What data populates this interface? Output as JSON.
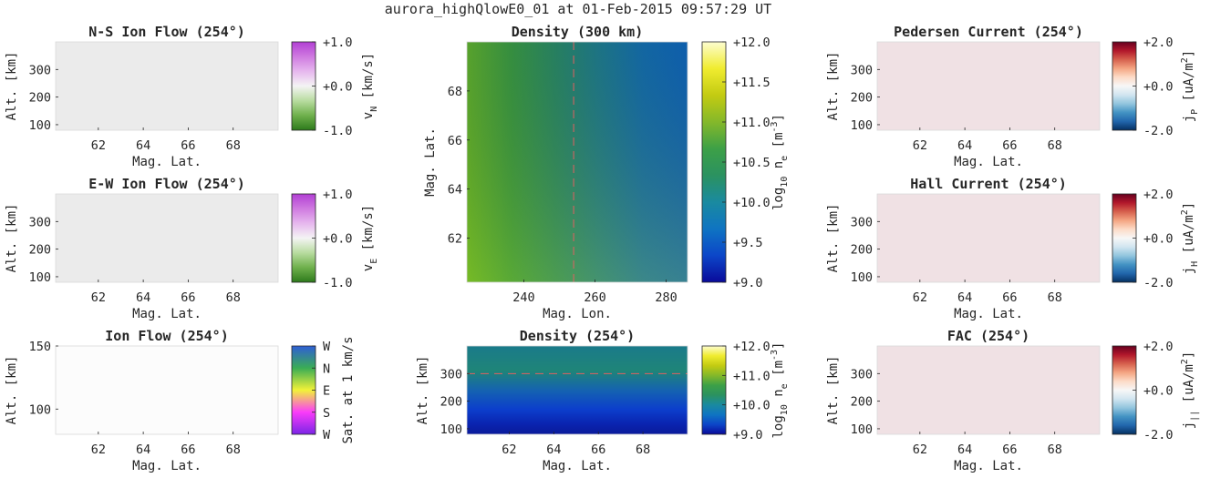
{
  "figure": {
    "title": "aurora_highQlowE0_01 at 01-Feb-2015 09:57:29 UT"
  },
  "colors": {
    "axis": "#262626",
    "flat_gray": "#ebebeb",
    "flat_pink": "#f0e1e4",
    "flat_white": "#fcfcfc",
    "cursor": "#e06060",
    "diverging_cmap": [
      "#053061",
      "#2166ac",
      "#4393c3",
      "#92c5de",
      "#d1e5f0",
      "#f7f7f7",
      "#fddbc7",
      "#f4a582",
      "#d6604d",
      "#b2182b",
      "#67001f"
    ],
    "green_purple_cmap": [
      "#2d7a1b",
      "#6fb04c",
      "#b8dca0",
      "#f4f4f4",
      "#e6b7ee",
      "#cf7ae0",
      "#b23fd4"
    ],
    "density_cmap": [
      "#0a0a9a",
      "#0c46c8",
      "#0f74c2",
      "#1a8aa0",
      "#2b9260",
      "#3da047",
      "#84b82a",
      "#c3cb12",
      "#f0ec2f",
      "#fdfdd0"
    ],
    "direction_cmap": [
      "#7b25e6",
      "#fa3cfa",
      "#f2f238",
      "#3aad55",
      "#2f5ed6"
    ]
  },
  "chart_data": [
    {
      "type": "heatmap",
      "title": "N-S Ion Flow (254°)",
      "xlabel": "Mag. Lat.",
      "ylabel": "Alt. [km]",
      "xlim": [
        60.1,
        70.0
      ],
      "ylim": [
        80,
        400
      ],
      "xticks": [
        62,
        64,
        66,
        68
      ],
      "yticks": [
        100,
        200,
        300
      ],
      "ytick_labels": [
        "100",
        "200",
        "300"
      ],
      "field": "uniform",
      "value": 0.0,
      "fill": "#ebebeb",
      "colorbar": {
        "cmap": "green_purple",
        "range": [
          -1.0,
          1.0
        ],
        "ticks": [
          "+1.0",
          "+0.0",
          "-1.0"
        ],
        "label_main": "v",
        "label_sub": "N",
        "label_tail": " [km/s]"
      }
    },
    {
      "type": "heatmap",
      "title": "E-W Ion Flow (254°)",
      "xlabel": "Mag. Lat.",
      "ylabel": "Alt. [km]",
      "xlim": [
        60.1,
        70.0
      ],
      "ylim": [
        80,
        400
      ],
      "xticks": [
        62,
        64,
        66,
        68
      ],
      "yticks": [
        100,
        200,
        300
      ],
      "ytick_labels": [
        "100",
        "200",
        "300"
      ],
      "field": "uniform",
      "value": 0.0,
      "fill": "#ebebeb",
      "colorbar": {
        "cmap": "green_purple",
        "range": [
          -1.0,
          1.0
        ],
        "ticks": [
          "+1.0",
          "+0.0",
          "-1.0"
        ],
        "label_main": "v",
        "label_sub": "E",
        "label_tail": " [km/s]"
      }
    },
    {
      "type": "heatmap",
      "title": "Ion Flow (254°)",
      "xlabel": "Mag. Lat.",
      "ylabel": "Alt. [km]",
      "xlim": [
        60.1,
        70.0
      ],
      "ylim": [
        80,
        150
      ],
      "xticks": [
        62,
        64,
        66,
        68
      ],
      "yticks": [
        100,
        150
      ],
      "ytick_labels": [
        "100",
        "150"
      ],
      "field": "uniform",
      "fill": "#fcfcfc",
      "colorbar": {
        "cmap": "direction",
        "ticks": [
          "W",
          "N",
          "E",
          "S",
          "W"
        ],
        "label": "Sat. at 1 km/s"
      }
    },
    {
      "type": "heatmap",
      "title": "Density (300 km)",
      "xlabel": "Mag. Lon.",
      "ylabel": "Mag. Lat.",
      "xlim": [
        224,
        286
      ],
      "ylim": [
        60.2,
        70.0
      ],
      "xticks": [
        240,
        260,
        280
      ],
      "yticks": [
        62,
        64,
        66,
        68
      ],
      "ytick_labels": [
        "62",
        "64",
        "66",
        "68"
      ],
      "field": "density_map",
      "log10_ne_range": [
        10.0,
        10.7
      ],
      "cursor": {
        "orientation": "vertical",
        "value": 254
      },
      "colorbar": {
        "cmap": "density",
        "range": [
          9.0,
          12.0
        ],
        "ticks": [
          "+12.0",
          "+11.5",
          "+11.0",
          "+10.5",
          "+10.0",
          "+9.5",
          "+9.0"
        ],
        "label_main": "log",
        "label_sub": "10",
        "label_mid": " n",
        "label_sub2": "e",
        "label_tail": " [m",
        "label_sup": "-3",
        "label_end": "]"
      }
    },
    {
      "type": "heatmap",
      "title": "Density (254°)",
      "xlabel": "Mag. Lat.",
      "ylabel": "Alt. [km]",
      "xlim": [
        60.1,
        70.0
      ],
      "ylim": [
        80,
        400
      ],
      "xticks": [
        62,
        64,
        66,
        68
      ],
      "yticks": [
        100,
        200,
        300
      ],
      "ytick_labels": [
        "100",
        "200",
        "300"
      ],
      "field": "density_profile",
      "cursor": {
        "orientation": "horizontal",
        "value": 300
      },
      "colorbar": {
        "cmap": "density",
        "range": [
          9.0,
          12.0
        ],
        "ticks": [
          "+12.0",
          "+11.0",
          "+10.0",
          "+9.0"
        ],
        "label_main": "log",
        "label_sub": "10",
        "label_mid": " n",
        "label_sub2": "e",
        "label_tail": " [m",
        "label_sup": "-3",
        "label_end": "]"
      }
    },
    {
      "type": "heatmap",
      "title": "Pedersen Current (254°)",
      "xlabel": "Mag. Lat.",
      "ylabel": "Alt. [km]",
      "xlim": [
        60.1,
        70.0
      ],
      "ylim": [
        80,
        400
      ],
      "xticks": [
        62,
        64,
        66,
        68
      ],
      "yticks": [
        100,
        200,
        300
      ],
      "ytick_labels": [
        "100",
        "200",
        "300"
      ],
      "field": "uniform",
      "fill": "#f0e1e4",
      "colorbar": {
        "cmap": "diverging",
        "range": [
          -2.0,
          2.0
        ],
        "ticks": [
          "+2.0",
          "+0.0",
          "-2.0"
        ],
        "label_main": "j",
        "label_sub": "P",
        "label_tail": " [uA/m",
        "label_sup": "2",
        "label_end": "]"
      }
    },
    {
      "type": "heatmap",
      "title": "Hall Current (254°)",
      "xlabel": "Mag. Lat.",
      "ylabel": "Alt. [km]",
      "xlim": [
        60.1,
        70.0
      ],
      "ylim": [
        80,
        400
      ],
      "xticks": [
        62,
        64,
        66,
        68
      ],
      "yticks": [
        100,
        200,
        300
      ],
      "ytick_labels": [
        "100",
        "200",
        "300"
      ],
      "field": "uniform",
      "fill": "#f0e1e4",
      "colorbar": {
        "cmap": "diverging",
        "range": [
          -2.0,
          2.0
        ],
        "ticks": [
          "+2.0",
          "+0.0",
          "-2.0"
        ],
        "label_main": "j",
        "label_sub": "H",
        "label_tail": " [uA/m",
        "label_sup": "2",
        "label_end": "]"
      }
    },
    {
      "type": "heatmap",
      "title": "FAC (254°)",
      "xlabel": "Mag. Lat.",
      "ylabel": "Alt. [km]",
      "xlim": [
        60.1,
        70.0
      ],
      "ylim": [
        80,
        400
      ],
      "xticks": [
        62,
        64,
        66,
        68
      ],
      "yticks": [
        100,
        200,
        300
      ],
      "ytick_labels": [
        "100",
        "200",
        "300"
      ],
      "field": "uniform",
      "fill": "#f0e1e4",
      "colorbar": {
        "cmap": "diverging",
        "range": [
          -2.0,
          2.0
        ],
        "ticks": [
          "+2.0",
          "+0.0",
          "-2.0"
        ],
        "label_main": "j",
        "label_sub": "||",
        "label_tail": " [uA/m",
        "label_sup": "2",
        "label_end": "]"
      }
    }
  ]
}
